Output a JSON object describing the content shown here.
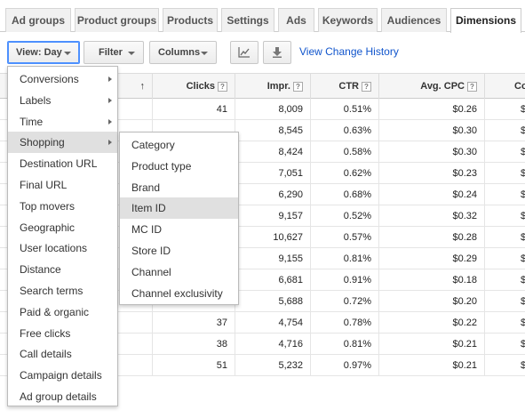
{
  "tabs": [
    "Ad groups",
    "Product groups",
    "Products",
    "Settings",
    "Ads",
    "Keywords",
    "Audiences",
    "Dimensions"
  ],
  "active_tab": "Dimensions",
  "toolbar": {
    "view_label": "View: Day",
    "filter_label": "Filter",
    "columns_label": "Columns",
    "chart_icon": "line-chart-icon",
    "download_icon": "download-icon",
    "history_link": "View Change History"
  },
  "table": {
    "sort_arrow": "↑",
    "help_glyph": "?",
    "headers": [
      "Clicks",
      "Impr.",
      "CTR",
      "Avg. CPC",
      "Co"
    ],
    "rows": [
      [
        "41",
        "8,009",
        "0.51%",
        "$0.26",
        "$1"
      ],
      [
        "",
        "8,545",
        "0.63%",
        "$0.30",
        "$1"
      ],
      [
        "",
        "8,424",
        "0.58%",
        "$0.30",
        "$1"
      ],
      [
        "",
        "7,051",
        "0.62%",
        "$0.23",
        "$1"
      ],
      [
        "",
        "6,290",
        "0.68%",
        "$0.24",
        "$1"
      ],
      [
        "",
        "9,157",
        "0.52%",
        "$0.32",
        "$1"
      ],
      [
        "",
        "10,627",
        "0.57%",
        "$0.28",
        "$1"
      ],
      [
        "",
        "9,155",
        "0.81%",
        "$0.29",
        "$2"
      ],
      [
        "01",
        "6,681",
        "0.91%",
        "$0.18",
        "$1"
      ],
      [
        "41",
        "5,688",
        "0.72%",
        "$0.20",
        "$"
      ],
      [
        "37",
        "4,754",
        "0.78%",
        "$0.22",
        "$"
      ],
      [
        "38",
        "4,716",
        "0.81%",
        "$0.21",
        "$"
      ],
      [
        "51",
        "5,232",
        "0.97%",
        "$0.21",
        "$1"
      ]
    ]
  },
  "view_menu": {
    "items": [
      {
        "label": "Conversions",
        "submenu": true
      },
      {
        "label": "Labels",
        "submenu": true
      },
      {
        "label": "Time",
        "submenu": true
      },
      {
        "label": "Shopping",
        "submenu": true
      },
      {
        "label": "Destination URL",
        "submenu": false
      },
      {
        "label": "Final URL",
        "submenu": false
      },
      {
        "label": "Top movers",
        "submenu": false
      },
      {
        "label": "Geographic",
        "submenu": false
      },
      {
        "label": "User locations",
        "submenu": false
      },
      {
        "label": "Distance",
        "submenu": false
      },
      {
        "label": "Search terms",
        "submenu": false
      },
      {
        "label": "Paid & organic",
        "submenu": false
      },
      {
        "label": "Free clicks",
        "submenu": false
      },
      {
        "label": "Call details",
        "submenu": false
      },
      {
        "label": "Campaign details",
        "submenu": false
      },
      {
        "label": "Ad group details",
        "submenu": false
      }
    ],
    "highlighted": "Shopping"
  },
  "shopping_submenu": {
    "items": [
      "Category",
      "Product type",
      "Brand",
      "Item ID",
      "MC ID",
      "Store ID",
      "Channel",
      "Channel exclusivity"
    ],
    "highlighted": "Item ID"
  },
  "colors": {
    "link": "#1155cc",
    "focus_border": "#4d90fe",
    "highlight": "#e0e0e0"
  }
}
